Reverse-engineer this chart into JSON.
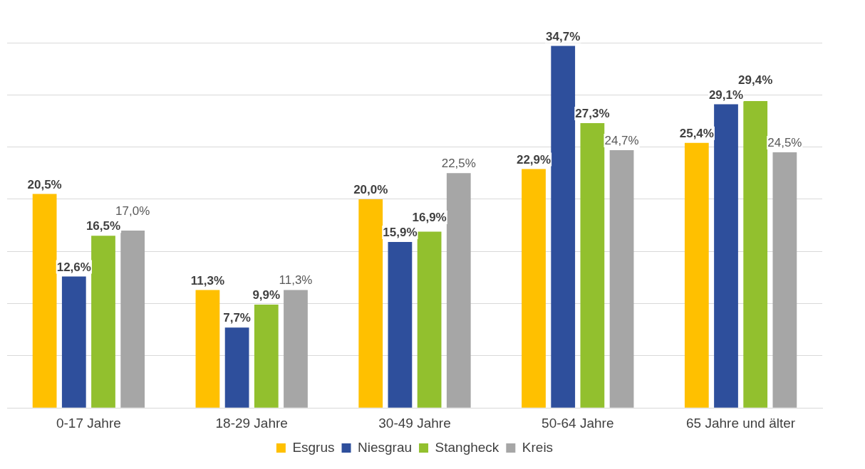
{
  "chart_data": {
    "type": "bar",
    "categories": [
      "0-17 Jahre",
      "18-29 Jahre",
      "30-49 Jahre",
      "50-64 Jahre",
      "65 Jahre und älter"
    ],
    "series": [
      {
        "name": "Esgrus",
        "color": "#ffc000",
        "values": [
          20.5,
          11.3,
          20.0,
          22.9,
          25.4
        ],
        "value_labels": [
          "20,5%",
          "11,3%",
          "20,0%",
          "22,9%",
          "25,4%"
        ]
      },
      {
        "name": "Niesgrau",
        "color": "#2e4f9c",
        "values": [
          12.6,
          7.7,
          15.9,
          34.7,
          29.1
        ],
        "value_labels": [
          "12,6%",
          "7,7%",
          "15,9%",
          "34,7%",
          "29,1%"
        ]
      },
      {
        "name": "Stangheck",
        "color": "#92c02e",
        "values": [
          16.5,
          9.9,
          16.9,
          27.3,
          29.4
        ],
        "value_labels": [
          "16,5%",
          "9,9%",
          "16,9%",
          "27,3%",
          "29,4%"
        ]
      },
      {
        "name": "Kreis",
        "color": "#a6a6a6",
        "values": [
          17.0,
          11.3,
          22.5,
          24.7,
          24.5
        ],
        "value_labels": [
          "17,0%",
          "11,3%",
          "22,5%",
          "24,7%",
          "24,5%"
        ]
      }
    ],
    "ylim": [
      0,
      35
    ],
    "yticks": [
      {
        "value": 0,
        "label": null
      },
      {
        "value": 5,
        "label": null
      },
      {
        "value": 10,
        "label": null
      },
      {
        "value": 15,
        "label": null
      },
      {
        "value": 20,
        "label": null
      },
      {
        "value": 25,
        "label": null
      },
      {
        "value": 30,
        "label": null
      },
      {
        "value": 35,
        "label": null
      }
    ],
    "grid": "y",
    "legend": "bottom",
    "tick_labels": "x"
  }
}
